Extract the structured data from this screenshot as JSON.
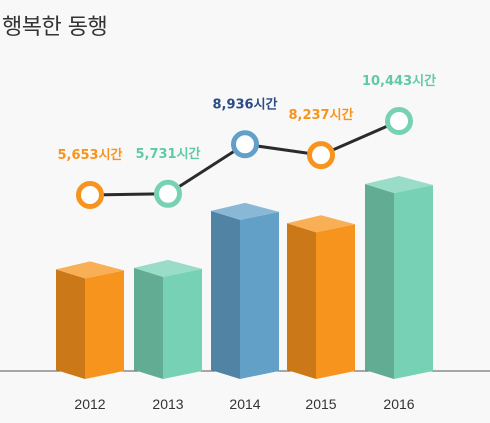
{
  "title": "행복한 동행",
  "chart_data": {
    "type": "bar",
    "title": "행복한 동행",
    "categories": [
      "2012",
      "2013",
      "2014",
      "2015",
      "2016"
    ],
    "values": [
      5653,
      5731,
      8936,
      8237,
      10443
    ],
    "value_labels": [
      "5,653시간",
      "5,731시간",
      "8,936시간",
      "8,237시간",
      "10,443시간"
    ],
    "unit": "시간",
    "overlay_line": true,
    "grid": false,
    "legend": "none",
    "colors": {
      "2012": "#f7941d",
      "2013": "#77d2b5",
      "2014": "#62a0c8",
      "2015": "#f7941d",
      "2016": "#77d2b5"
    },
    "label_colors": {
      "2012": "#f7941d",
      "2013": "#5fc9a8",
      "2014": "#2a4b87",
      "2015": "#f7941d",
      "2016": "#5fc9a8"
    },
    "line_color": "#2b2b2b"
  }
}
